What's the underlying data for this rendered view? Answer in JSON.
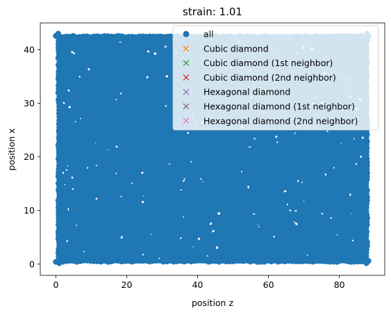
{
  "chart_data": {
    "type": "scatter",
    "title": "strain: 1.01",
    "xlabel": "position z",
    "ylabel": "position x",
    "xlim": [
      -4.4,
      92.8
    ],
    "ylim": [
      -2.1,
      45.0
    ],
    "xticks": [
      0,
      20,
      40,
      60,
      80
    ],
    "yticks": [
      0,
      10,
      20,
      30,
      40
    ],
    "x_tick_labels": [
      "0",
      "20",
      "40",
      "60",
      "80"
    ],
    "y_tick_labels": [
      "0",
      "10",
      "20",
      "30",
      "40"
    ],
    "grid": false,
    "legend_position": "upper right",
    "point_cloud": {
      "description_source": "dense cloud of atoms filling the region",
      "x_range": [
        0,
        88.5
      ],
      "y_range": [
        0,
        43
      ],
      "color": "#1f77b4"
    },
    "series": [
      {
        "name": "all",
        "marker": "o",
        "color": "#1f77b4",
        "values": "dense uniform cloud"
      },
      {
        "name": "Cubic diamond",
        "marker": "x",
        "color": "#ff7f0e",
        "values": []
      },
      {
        "name": "Cubic diamond (1st neighbor)",
        "marker": "x",
        "color": "#2ca02c",
        "values": []
      },
      {
        "name": "Cubic diamond (2nd neighbor)",
        "marker": "x",
        "color": "#d62728",
        "values": []
      },
      {
        "name": "Hexagonal diamond",
        "marker": "x",
        "color": "#9467bd",
        "values": []
      },
      {
        "name": "Hexagonal diamond (1st neighbor)",
        "marker": "x",
        "color": "#8c564b",
        "values": []
      },
      {
        "name": "Hexagonal diamond (2nd neighbor)",
        "marker": "x",
        "color": "#e377c2",
        "values": []
      }
    ]
  }
}
